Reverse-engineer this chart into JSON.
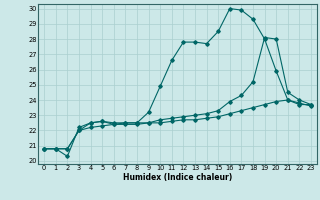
{
  "title": "",
  "xlabel": "Humidex (Indice chaleur)",
  "bg_color": "#cce8e8",
  "grid_color": "#aacfcf",
  "line_color": "#006666",
  "xlim": [
    -0.5,
    23.5
  ],
  "ylim": [
    19.8,
    30.3
  ],
  "xticks": [
    0,
    1,
    2,
    3,
    4,
    5,
    6,
    7,
    8,
    9,
    10,
    11,
    12,
    13,
    14,
    15,
    16,
    17,
    18,
    19,
    20,
    21,
    22,
    23
  ],
  "yticks": [
    20,
    21,
    22,
    23,
    24,
    25,
    26,
    27,
    28,
    29,
    30
  ],
  "line1_x": [
    0,
    1,
    2,
    3,
    4,
    5,
    6,
    7,
    8,
    9,
    10,
    11,
    12,
    13,
    14,
    15,
    16,
    17,
    18,
    19,
    20,
    21,
    22,
    23
  ],
  "line1_y": [
    20.8,
    20.8,
    20.3,
    22.2,
    22.5,
    22.6,
    22.5,
    22.5,
    22.5,
    23.2,
    24.9,
    26.6,
    27.8,
    27.8,
    27.7,
    28.5,
    30.0,
    29.9,
    29.3,
    28.0,
    25.9,
    24.0,
    23.7,
    23.7
  ],
  "line2_x": [
    0,
    1,
    2,
    3,
    4,
    5,
    6,
    7,
    8,
    9,
    10,
    11,
    12,
    13,
    14,
    15,
    16,
    17,
    18,
    19,
    20,
    21,
    22,
    23
  ],
  "line2_y": [
    20.8,
    20.8,
    20.8,
    22.0,
    22.2,
    22.3,
    22.4,
    22.4,
    22.4,
    22.5,
    22.5,
    22.6,
    22.7,
    22.7,
    22.8,
    22.9,
    23.1,
    23.3,
    23.5,
    23.7,
    23.9,
    24.0,
    23.8,
    23.6
  ],
  "line3_x": [
    0,
    1,
    2,
    3,
    4,
    5,
    6,
    7,
    8,
    9,
    10,
    11,
    12,
    13,
    14,
    15,
    16,
    17,
    18,
    19,
    20,
    21,
    22,
    23
  ],
  "line3_y": [
    20.8,
    20.8,
    20.8,
    22.0,
    22.5,
    22.6,
    22.4,
    22.5,
    22.5,
    22.5,
    22.7,
    22.8,
    22.9,
    23.0,
    23.1,
    23.3,
    23.9,
    24.3,
    25.2,
    28.1,
    28.0,
    24.5,
    24.0,
    23.7
  ],
  "xlabel_fontsize": 5.5,
  "tick_fontsize": 4.8,
  "marker_size": 1.8,
  "line_width": 0.8
}
